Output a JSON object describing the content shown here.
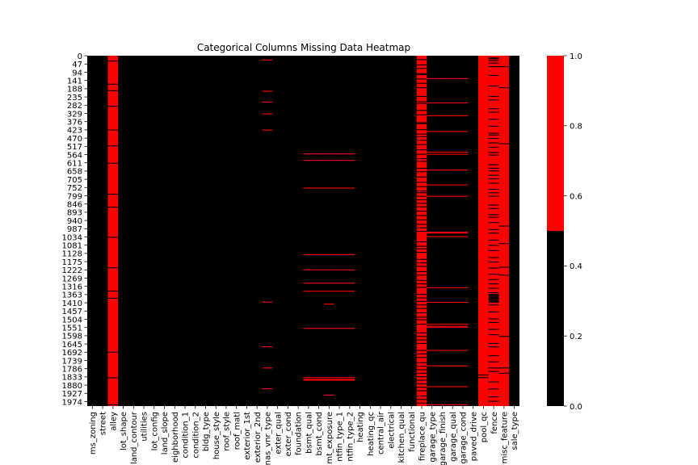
{
  "chart_data": {
    "type": "heatmap",
    "title": "Categorical Columns Missing Data Heatmap",
    "xlabel": "",
    "ylabel": "",
    "colors": {
      "missing": "#ff0000",
      "present": "#000000"
    },
    "colormap_thresholds": [
      0.5
    ],
    "colorbar": {
      "ticks": [
        "0.0",
        "0.2",
        "0.4",
        "0.6",
        "0.8",
        "1.0"
      ],
      "range": [
        0,
        1
      ]
    },
    "row_count": 2000,
    "y_tick_labels": [
      "0",
      "47",
      "94",
      "141",
      "188",
      "235",
      "282",
      "329",
      "376",
      "423",
      "470",
      "517",
      "564",
      "611",
      "658",
      "705",
      "752",
      "799",
      "846",
      "893",
      "940",
      "987",
      "1034",
      "1081",
      "1128",
      "1175",
      "1222",
      "1269",
      "1316",
      "1363",
      "1410",
      "1457",
      "1504",
      "1551",
      "1598",
      "1645",
      "1692",
      "1739",
      "1786",
      "1833",
      "1880",
      "1927",
      "1974"
    ],
    "columns": [
      "ms_zoning",
      "street",
      "alley",
      "lot_shape",
      "land_contour",
      "utilities",
      "lot_config",
      "land_slope",
      "neighborhood",
      "condition_1",
      "condition_2",
      "bldg_type",
      "house_style",
      "roof_style",
      "roof_matl",
      "exterior_1st",
      "exterior_2nd",
      "mas_vnr_type",
      "exter_qual",
      "exter_cond",
      "foundation",
      "bsmt_qual",
      "bsmt_cond",
      "bsmt_exposure",
      "bsmtfin_type_1",
      "bsmtfin_type_2",
      "heating",
      "heating_qc",
      "central_air",
      "electrical",
      "kitchen_qual",
      "functional",
      "fireplace_qu",
      "garage_type",
      "garage_finish",
      "garage_qual",
      "garage_cond",
      "paved_drive",
      "pool_qc",
      "fence",
      "misc_feature",
      "sale_type"
    ],
    "x_tick_labels": [
      "ms_zoning",
      "street",
      "alley",
      "lot_shape",
      "land_contour",
      "utilities",
      "lot_config",
      "land_slope",
      "eighborhood",
      "condition_1",
      "condition_2",
      "bldg_type",
      "house_style",
      "roof_style",
      "roof_matl",
      "exterior_1st",
      "exterior_2nd",
      "nas_vnr_type",
      "exter_qual",
      "exter_cond",
      "foundation",
      "bsmt_qual",
      "bsmt_cond",
      "mt_exposure",
      "ntfin_type_1",
      "ntfin_type_2",
      "heating",
      "heating_qc",
      "central_air",
      "electrical",
      "kitchen_qual",
      "functional",
      "fireplace_qu",
      "garage_type",
      "garage_finish",
      "garage_qual",
      "garage_cond",
      "paved_drive",
      "pool_qc",
      "fence",
      "misc_feature",
      "sale_type"
    ],
    "present_rows": {
      "alley": [
        28,
        160,
        197,
        286,
        422,
        512,
        611,
        788,
        862,
        1034,
        1208,
        1341,
        1382,
        1690,
        1836,
        1990
      ],
      "fireplace_qu": [
        20,
        50,
        70,
        100,
        105,
        130,
        155,
        180,
        230,
        260,
        270,
        310,
        335,
        380,
        385,
        420,
        445,
        460,
        480,
        505,
        535,
        560,
        585,
        600,
        640,
        660,
        690,
        720,
        745,
        770,
        780,
        800,
        820,
        840,
        860,
        885,
        910,
        935,
        960,
        980,
        1000,
        1060,
        1085,
        1100,
        1120,
        1160,
        1180,
        1200,
        1230,
        1250,
        1280,
        1300,
        1320,
        1360,
        1380,
        1400,
        1420,
        1440,
        1465,
        1490,
        1505,
        1530,
        1580,
        1600,
        1620,
        1640,
        1680,
        1700,
        1720,
        1750,
        1770,
        1790,
        1810,
        1830,
        1850,
        1870,
        1890,
        1910,
        1940,
        1960,
        1980
      ],
      "pool_qc": [
        1820,
        1835
      ],
      "fence": [
        10,
        15,
        25,
        40,
        60,
        110,
        170,
        230,
        250,
        300,
        320,
        360,
        400,
        440,
        450,
        470,
        495,
        520,
        550,
        565,
        620,
        640,
        655,
        680,
        700,
        725,
        760,
        780,
        800,
        850,
        870,
        905,
        920,
        950,
        990,
        1010,
        1050,
        1080,
        1110,
        1150,
        1175,
        1210,
        1245,
        1275,
        1300,
        1325,
        1350,
        1360,
        1365,
        1370,
        1375,
        1380,
        1385,
        1390,
        1395,
        1400,
        1405,
        1420,
        1460,
        1500,
        1520,
        1560,
        1590,
        1640,
        1660,
        1710,
        1745,
        1780,
        1800,
        1860,
        1900,
        1945,
        1970
      ],
      "misc_feature": [
        60,
        180,
        500,
        970,
        1070,
        1205,
        1250,
        1600,
        1780,
        1810
      ]
    },
    "missing_rows": {
      "mas_vnr_type": [
        22,
        200,
        262,
        330,
        422,
        1404,
        1659,
        1780,
        1899
      ],
      "bsmt_qual": [
        558,
        595,
        753,
        1133,
        1220,
        1296,
        1342,
        1554,
        1835,
        1845,
        1850
      ],
      "bsmt_cond": [
        558,
        595,
        753,
        1133,
        1220,
        1296,
        1342,
        1554,
        1835,
        1845,
        1850
      ],
      "bsmt_exposure": [
        558,
        595,
        753,
        1133,
        1220,
        1296,
        1342,
        1415,
        1554,
        1835,
        1845,
        1850,
        1935
      ],
      "bsmtfin_type_1": [
        558,
        595,
        753,
        1133,
        1220,
        1296,
        1342,
        1554,
        1835,
        1845,
        1850
      ],
      "bsmtfin_type_2": [
        558,
        595,
        753,
        1133,
        1220,
        1296,
        1342,
        1554,
        1835,
        1845,
        1850
      ],
      "garage_type": [
        128,
        267,
        340,
        430,
        548,
        560,
        650,
        735,
        800,
        1005,
        1010,
        1030,
        1322,
        1405,
        1530,
        1542,
        1548,
        1680,
        1768,
        1887,
        1990
      ],
      "garage_finish": [
        128,
        267,
        340,
        430,
        548,
        560,
        650,
        735,
        800,
        1005,
        1010,
        1030,
        1322,
        1405,
        1530,
        1542,
        1548,
        1680,
        1768,
        1887,
        1990
      ],
      "garage_qual": [
        128,
        267,
        340,
        430,
        548,
        560,
        650,
        735,
        800,
        1005,
        1010,
        1030,
        1322,
        1405,
        1530,
        1542,
        1548,
        1680,
        1768,
        1887,
        1990
      ],
      "garage_cond": [
        128,
        267,
        340,
        430,
        548,
        560,
        650,
        735,
        800,
        1005,
        1010,
        1030,
        1322,
        1405,
        1530,
        1542,
        1548,
        1680,
        1768,
        1887,
        1990
      ]
    },
    "column_default_missing": {
      "alley": 1,
      "fireplace_qu": 1,
      "pool_qc": 1,
      "fence": 1,
      "misc_feature": 1
    }
  }
}
